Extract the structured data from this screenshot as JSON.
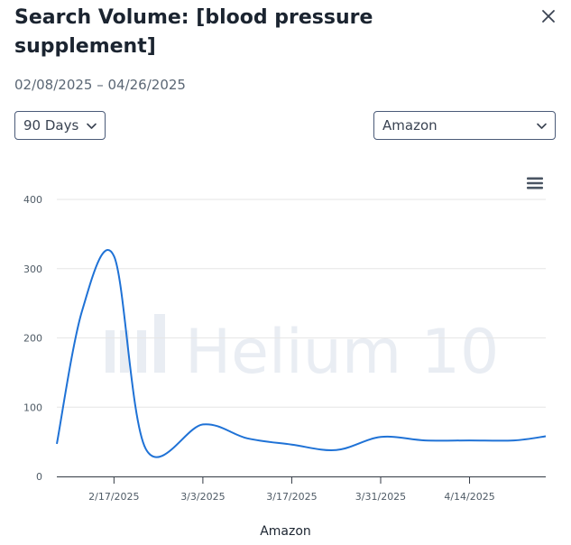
{
  "dialog": {
    "title": "Search Volume: [blood pressure supplement]",
    "date_range": "02/08/2025 – 04/26/2025"
  },
  "controls": {
    "period_select": {
      "value": "90 Days"
    },
    "marketplace_select": {
      "value": "Amazon"
    }
  },
  "icons": {
    "close": "close-icon",
    "chevron": "chevron-down-icon",
    "menu": "hamburger-menu-icon"
  },
  "watermark": "Helium 10",
  "colors": {
    "line": "#1f72d6",
    "grid": "#e6e6e6",
    "watermark": "#e9edf3"
  },
  "chart_data": {
    "type": "line",
    "x_tick_labels": [
      "2/17/2025",
      "3/3/2025",
      "3/17/2025",
      "3/31/2025",
      "4/14/2025"
    ],
    "y_tick_labels": [
      "0",
      "100",
      "200",
      "300",
      "400"
    ],
    "ylim": [
      0,
      400
    ],
    "grid": true,
    "legend_position": "bottom",
    "series": [
      {
        "name": "Amazon",
        "x": [
          "2025-02-08",
          "2025-02-12",
          "2025-02-17",
          "2025-02-22",
          "2025-03-03",
          "2025-03-10",
          "2025-03-17",
          "2025-03-24",
          "2025-03-31",
          "2025-04-07",
          "2025-04-14",
          "2025-04-21",
          "2025-04-26"
        ],
        "values": [
          47,
          240,
          318,
          40,
          75,
          55,
          46,
          38,
          57,
          52,
          52,
          52,
          58
        ]
      }
    ]
  }
}
